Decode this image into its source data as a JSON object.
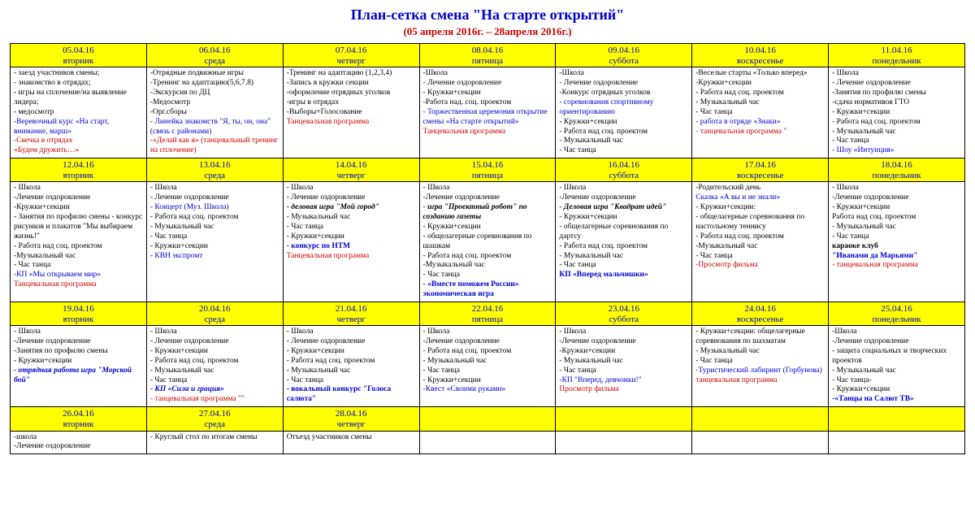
{
  "title": "План-сетка смена \"На старте открытий\"",
  "subtitle": "(05 апреля 2016г. – 28апреля 2016г.)",
  "columns": 7,
  "weeks": [
    {
      "headers": [
        {
          "date": "05.04.16",
          "dow": "вторник"
        },
        {
          "date": "06.04.16",
          "dow": "среда"
        },
        {
          "date": "07.04.16",
          "dow": "четверг"
        },
        {
          "date": "08.04.16",
          "dow": "пятница"
        },
        {
          "date": "09.04.16",
          "dow": "суббота"
        },
        {
          "date": "10.04.16",
          "dow": "воскресенье"
        },
        {
          "date": "11.04.16",
          "dow": "понедельник"
        }
      ],
      "cells": [
        [
          {
            "t": "- заезд участников смены;"
          },
          {
            "t": "- знакомство в отрядах;"
          },
          {
            "t": "- игры на сплочение/на выявление лидера;"
          },
          {
            "t": "- медосмотр"
          },
          {
            "t": "-Веревочный курс «На старт, внимание, марш»",
            "cls": "blue"
          },
          {
            "t": "-Свечка в отрядах",
            "cls": "red"
          },
          {
            "t": "«Будем дружить…»",
            "cls": "red"
          }
        ],
        [
          {
            "t": "-Отрядные подвижные игры"
          },
          {
            "t": "-Тренинг на адаптацию(5,6,7,8)"
          },
          {
            "t": "-Экскурсия по ДЦ"
          },
          {
            "t": "-Медосмотр"
          },
          {
            "t": "-Орг.сборы"
          },
          {
            "t": "- Линейка знакомств \"Я, ты, он, она\"(связь с районами)",
            "cls": "blue"
          },
          {
            "t": "-«Делай как я» (танцевальный тренинг на сплочение)",
            "cls": "red"
          }
        ],
        [
          {
            "t": "-Тренинг на адаптацию (1,2,3,4)"
          },
          {
            "t": "-Запись в кружки секции"
          },
          {
            "t": "-оформление отрядных уголков"
          },
          {
            "t": "-игры в отрядах"
          },
          {
            "t": "-Выборы+Голосование"
          },
          {
            "t": "Танцевальная программа",
            "cls": "red"
          }
        ],
        [
          {
            "t": "-Школа"
          },
          {
            "t": "- Лечение оздоровление"
          },
          {
            "t": "- Кружки+секции"
          },
          {
            "t": "-Работа над. соц. проектом"
          },
          {
            "t": "- Торжественная церемония открытие смены «На старте открытий»",
            "cls": "blue"
          },
          {
            "t": "Танцевальная программа",
            "cls": "red"
          }
        ],
        [
          {
            "t": "-Школа"
          },
          {
            "t": "- Лечение оздоровление"
          },
          {
            "t": "-Конкурс отрядных уголков"
          },
          {
            "t": "- соревнования спортивному ориентированию",
            "cls": "blue"
          },
          {
            "t": "- Кружки+секции"
          },
          {
            "t": "- Работа над соц. проектом"
          },
          {
            "t": "- Музыкальный час"
          },
          {
            "t": "- Час танца"
          }
        ],
        [
          {
            "t": "-Веселые старты «Только вперед»"
          },
          {
            "t": "-Кружки+секции"
          },
          {
            "t": "- Работа над соц. проектом"
          },
          {
            "t": "- Музыкальный час"
          },
          {
            "t": "- Час танца"
          },
          {
            "t": "- работа в отряде «Знаки»",
            "cls": "blue"
          },
          {
            "t": "- танцевальная программа \"",
            "cls": "red"
          }
        ],
        [
          {
            "t": "- Школа"
          },
          {
            "t": "- Лечение оздоровление"
          },
          {
            "t": "-Занятия по профилю смены"
          },
          {
            "t": "-сдача нормативов ГТО"
          },
          {
            "t": "- Кружки+секции"
          },
          {
            "t": "- Работа над соц. проектом"
          },
          {
            "t": "- Музыкальный час"
          },
          {
            "t": "- Час танца"
          },
          {
            "t": "- Шоу «Интуиция»",
            "cls": "blue"
          }
        ]
      ]
    },
    {
      "headers": [
        {
          "date": "12.04.16",
          "dow": "вторник"
        },
        {
          "date": "13.04.16",
          "dow": "среда"
        },
        {
          "date": "14.04.16",
          "dow": "четверг"
        },
        {
          "date": "15.04.16",
          "dow": "пятница"
        },
        {
          "date": "16.04.16",
          "dow": "суббота"
        },
        {
          "date": "17.04.16",
          "dow": "воскресенье"
        },
        {
          "date": "18.04.16",
          "dow": "понедельник"
        }
      ],
      "cells": [
        [
          {
            "t": "- Школа"
          },
          {
            "t": "-Лечение оздоровление"
          },
          {
            "t": "-Кружки+секции"
          },
          {
            "t": "- Занятия по профилю смены - конкурс рисунков и плакатов \"Мы выбираем жизнь!\""
          },
          {
            "t": "- Работа над соц. проектом"
          },
          {
            "t": "-Музыкальный час"
          },
          {
            "t": "- Час танца"
          },
          {
            "t": "-КП «Мы открываем мир»",
            "cls": "blue"
          },
          {
            "t": "Танцевальная программа",
            "cls": "red"
          }
        ],
        [
          {
            "t": "- Школа"
          },
          {
            "t": "- Лечение оздоровление"
          },
          {
            "t": "- Концерт (Муз. Школа)",
            "cls": "blue"
          },
          {
            "t": "- Работа над соц. проектом"
          },
          {
            "t": "- Музыкальный час"
          },
          {
            "t": "- Час танца"
          },
          {
            "t": "- Кружки+секции"
          },
          {
            "t": "- КВН экспромт",
            "cls": "blue"
          }
        ],
        [
          {
            "t": "- Школа"
          },
          {
            "t": "- Лечение оздоровление"
          },
          {
            "t": "- деловая игра \"Мой город\"",
            "cls": "bold italic"
          },
          {
            "t": "- Музыкальный час"
          },
          {
            "t": "- Час танца"
          },
          {
            "t": "- Кружки+секции"
          },
          {
            "t": "- конкурс по НТМ",
            "cls": "blue bold"
          },
          {
            "t": "Танцевальная программа",
            "cls": "red"
          }
        ],
        [
          {
            "t": "- Школа"
          },
          {
            "t": "-Лечение оздоровление"
          },
          {
            "t": " "
          },
          {
            "t": "- игра \"Проектный робот\" по созданию газеты",
            "cls": "bold italic"
          },
          {
            "t": "- Кружки+секции"
          },
          {
            "t": "- общелагерные соревнования по шашкам"
          },
          {
            "t": "- Работа над соц. проектом"
          },
          {
            "t": "-Музыкальный час"
          },
          {
            "t": "- Час танца"
          },
          {
            "t": "- «Вместе поможем России» экономическая игра",
            "cls": "blue bold"
          }
        ],
        [
          {
            "t": "- Школа"
          },
          {
            "t": "-Лечение оздоровление"
          },
          {
            "t": " "
          },
          {
            "t": "- Деловая игра \"Квадрат идей\"",
            "cls": "bold italic"
          },
          {
            "t": "- Кружки+секции"
          },
          {
            "t": "- общелагерные соревнования по дартсу"
          },
          {
            "t": "- Работа над соц. проектом"
          },
          {
            "t": "- Музыкальный час"
          },
          {
            "t": "- Час танца"
          },
          {
            "t": "КП «Вперед мальчишки»",
            "cls": "blue bold"
          }
        ],
        [
          {
            "t": "-Родительский день"
          },
          {
            "t": "Сказка «А вы и не знали»",
            "cls": "blue"
          },
          {
            "t": "- Кружки+секции:"
          },
          {
            "t": "- общелагерные соревнования по настольному теннису"
          },
          {
            "t": "- Работа над соц. проектом"
          },
          {
            "t": "-Музыкальный час"
          },
          {
            "t": "- Час танца"
          },
          {
            "t": " "
          },
          {
            "t": "-Просмотр фильма",
            "cls": "red"
          }
        ],
        [
          {
            "t": "- Школа"
          },
          {
            "t": "-Лечение оздоровление"
          },
          {
            "t": "- Кружки+секции"
          },
          {
            "t": "Работа над соц. проектом"
          },
          {
            "t": "- Музыкальный час"
          },
          {
            "t": "- Час танца"
          },
          {
            "t": "караоке клуб",
            "cls": "bold"
          },
          {
            "t": "\"Иванами да Марьями\"",
            "cls": "blue bold"
          },
          {
            "t": " "
          },
          {
            "t": "- танцевальная программа",
            "cls": "red"
          }
        ]
      ]
    },
    {
      "headers": [
        {
          "date": "19.04.16",
          "dow": "вторник"
        },
        {
          "date": "20.04.16",
          "dow": "среда"
        },
        {
          "date": "21.04.16",
          "dow": "четверг"
        },
        {
          "date": "22.04.16",
          "dow": "пятница"
        },
        {
          "date": "23.04.16",
          "dow": "суббота"
        },
        {
          "date": "24.04.16",
          "dow": "воскресенье"
        },
        {
          "date": "25.04.16",
          "dow": "понедельник"
        }
      ],
      "cells": [
        [
          {
            "t": "- Школа"
          },
          {
            "t": "-Лечение оздоровление"
          },
          {
            "t": "-Занятия по профилю смены"
          },
          {
            "t": "- Кружки+секции"
          },
          {
            "t": "- отрядная работа игра \"Морской бой\"",
            "cls": "blue bold italic"
          }
        ],
        [
          {
            "t": "- Школа"
          },
          {
            "t": "- Лечение оздоровление"
          },
          {
            "t": "- Кружки+секции"
          },
          {
            "t": "- Работа над соц. проектом"
          },
          {
            "t": "- Музыкальный час"
          },
          {
            "t": "- Час танца"
          },
          {
            "t": "- КП «Сила и грация»",
            "cls": "blue bold italic"
          },
          {
            "t": "- танцевальная программа \"\"",
            "cls": "red"
          }
        ],
        [
          {
            "t": "- Школа"
          },
          {
            "t": "- Лечение оздоровление"
          },
          {
            "t": "- Кружки+секции"
          },
          {
            "t": "- Работа над соц. проектом"
          },
          {
            "t": "- Музыкальный час"
          },
          {
            "t": "- Час танца"
          },
          {
            "t": "- вокальный конкурс \"Голоса салюта\"",
            "cls": "blue bold"
          }
        ],
        [
          {
            "t": "- Школа"
          },
          {
            "t": "-Лечение оздоровление"
          },
          {
            "t": "- Работа над соц. проектом"
          },
          {
            "t": "- Музыкальный час"
          },
          {
            "t": "- Час танца"
          },
          {
            "t": "- Кружки+секции"
          },
          {
            "t": "-Квест «Своими руками»",
            "cls": "blue"
          }
        ],
        [
          {
            "t": "- Школа"
          },
          {
            "t": "-Лечение оздоровление"
          },
          {
            "t": "-Кружки+секции"
          },
          {
            "t": "- Музыкальный час"
          },
          {
            "t": "- Час танца"
          },
          {
            "t": "-КП \"Вперед, девчонки!\"",
            "cls": "blue"
          },
          {
            "t": " "
          },
          {
            "t": "Просмотр фильма",
            "cls": "red"
          }
        ],
        [
          {
            "t": "- Кружки+секции: общелагерные соревнования по шахматам"
          },
          {
            "t": "- Музыкальный час"
          },
          {
            "t": "- Час танца"
          },
          {
            "t": "-Туристический лабиринт (Горбунова)",
            "cls": "blue"
          },
          {
            "t": "танцевальная программа",
            "cls": "red"
          }
        ],
        [
          {
            "t": "-Школа"
          },
          {
            "t": "-Лечение оздоровление"
          },
          {
            "t": "- защита социальных и творческих проектов"
          },
          {
            "t": "- Музыкальный час"
          },
          {
            "t": "- Час танца-"
          },
          {
            "t": "- Кружки+секции"
          },
          {
            "t": "-«Танцы на Салют ТВ»",
            "cls": "blue bold"
          }
        ]
      ]
    },
    {
      "headers": [
        {
          "date": "26.04.16",
          "dow": "вторник"
        },
        {
          "date": "27.04.16",
          "dow": "среда"
        },
        {
          "date": "28.04.16",
          "dow": "четверг"
        },
        {
          "date": "",
          "dow": ""
        },
        {
          "date": "",
          "dow": ""
        },
        {
          "date": "",
          "dow": ""
        },
        {
          "date": "",
          "dow": ""
        }
      ],
      "cells": [
        [
          {
            "t": "-школа"
          },
          {
            "t": "-Лечение оздоровление"
          }
        ],
        [
          {
            "t": "- Круглый стол по итогам смены"
          }
        ],
        [
          {
            "t": "Отъезд участников смены"
          }
        ],
        [],
        [],
        [],
        []
      ]
    }
  ]
}
